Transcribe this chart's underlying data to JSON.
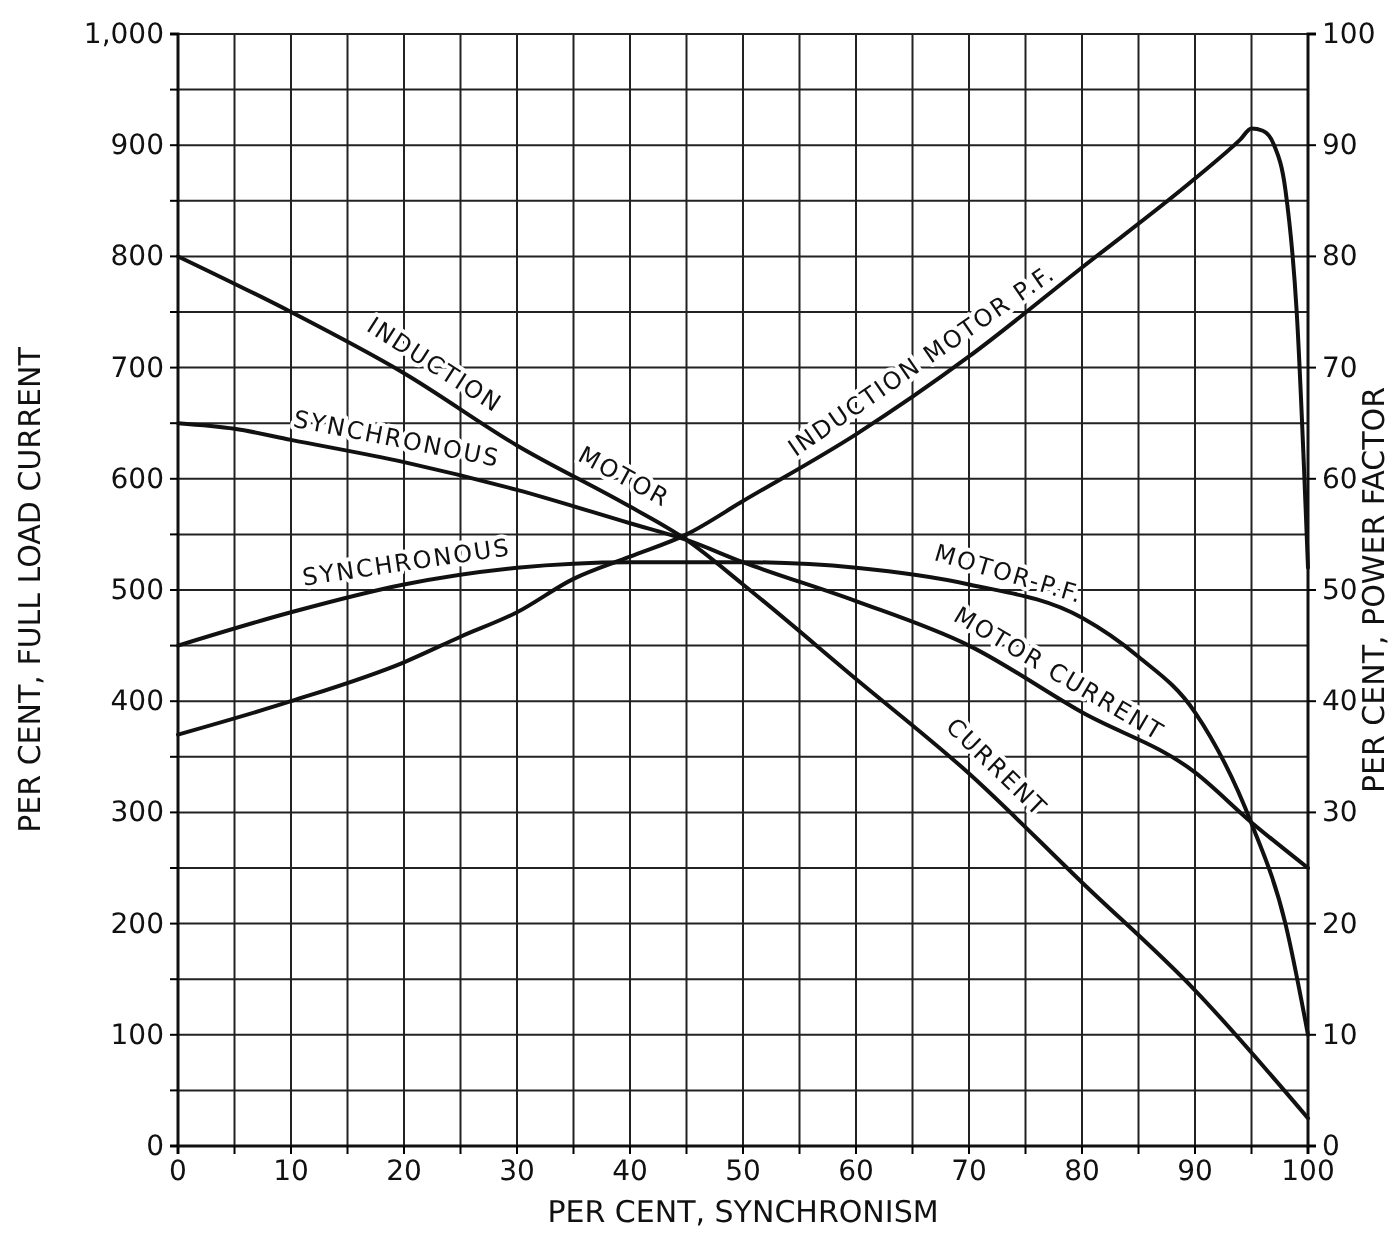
{
  "chart_data": {
    "type": "line",
    "xlabel": "PER CENT, SYNCHRONISM",
    "ylabel": "PER CENT, FULL LOAD CURRENT",
    "y2label": "PER CENT, POWER FACTOR",
    "xlim": [
      0,
      100
    ],
    "xticks": [
      0,
      {
        "value": 5,
        "label": null
      },
      10,
      {
        "value": 15,
        "label": null
      },
      20,
      {
        "value": 25,
        "label": null
      },
      30,
      {
        "value": 35,
        "label": null
      },
      40,
      {
        "value": 45,
        "label": null
      },
      50,
      {
        "value": 55,
        "label": null
      },
      60,
      {
        "value": 65,
        "label": null
      },
      70,
      {
        "value": 75,
        "label": null
      },
      80,
      {
        "value": 85,
        "label": null
      },
      90,
      {
        "value": 95,
        "label": null
      },
      100
    ],
    "ylim": [
      0,
      1000
    ],
    "yticks": [
      0,
      {
        "value": 50,
        "label": null
      },
      100,
      {
        "value": 150,
        "label": null
      },
      200,
      {
        "value": 250,
        "label": null
      },
      300,
      {
        "value": 350,
        "label": null
      },
      400,
      {
        "value": 450,
        "label": null
      },
      500,
      {
        "value": 550,
        "label": null
      },
      600,
      {
        "value": 650,
        "label": null
      },
      700,
      {
        "value": 750,
        "label": null
      },
      800,
      {
        "value": 850,
        "label": null
      },
      900,
      {
        "value": 950,
        "label": null
      },
      {
        "value": 1000,
        "label": "1,000"
      }
    ],
    "y2lim": [
      0,
      100
    ],
    "y2ticks": [
      0,
      10,
      20,
      30,
      40,
      50,
      60,
      70,
      80,
      90,
      100
    ],
    "grid": true,
    "marker": "none",
    "line_style": "solid",
    "series": [
      {
        "color": "#111111",
        "x": [
          0,
          10,
          20,
          30,
          40,
          45,
          50,
          60,
          70,
          80,
          90,
          100
        ],
        "values": [
          800,
          750,
          695,
          630,
          575,
          545,
          505,
          420,
          335,
          237,
          140,
          25
        ]
      },
      {
        "color": "#111111",
        "x": [
          0,
          5,
          10,
          20,
          30,
          40,
          45,
          50,
          60,
          70,
          80,
          90,
          95,
          100
        ],
        "values": [
          650,
          645,
          635,
          615,
          590,
          560,
          545,
          525,
          490,
          450,
          390,
          336,
          291,
          250
        ]
      },
      {
        "color": "#111111",
        "axis": "y2",
        "x": [
          0,
          10,
          20,
          25,
          30,
          35,
          40,
          45,
          50,
          60,
          70,
          80,
          90,
          94,
          95,
          96,
          97,
          98,
          99,
          100
        ],
        "values": [
          37,
          40,
          43.5,
          45.8,
          48,
          51,
          53,
          55,
          58,
          64,
          71,
          79,
          87,
          90.5,
          91.5,
          91.3,
          90,
          86,
          75,
          52
        ]
      },
      {
        "color": "#111111",
        "axis": "y2",
        "x": [
          0,
          10,
          20,
          30,
          40,
          45,
          50,
          60,
          70,
          80,
          85,
          90,
          95,
          98,
          100
        ],
        "values": [
          45,
          48,
          50.5,
          52,
          52.5,
          52.5,
          52.5,
          52,
          50.5,
          47.5,
          44,
          39,
          29,
          20,
          10
        ]
      }
    ],
    "annotations": [
      "INDUCTION",
      "MOTOR",
      "CURRENT",
      "SYNCHRONOUS",
      "MOTOR CURRENT",
      "SYNCHRONOUS",
      "MOTOR-P.F.",
      "INDUCTION MOTOR P.F."
    ]
  }
}
